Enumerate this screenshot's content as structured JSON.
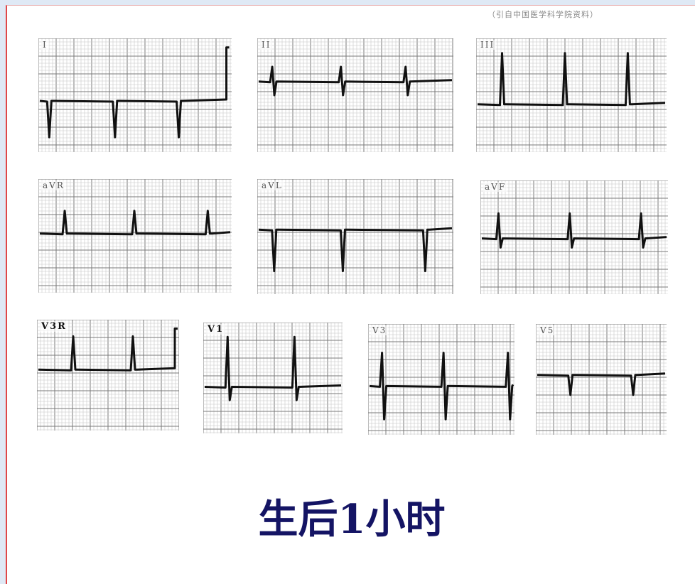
{
  "source_note": "（引自中国医学科学院资料）",
  "caption": "生后1小时",
  "leads": [
    {
      "label": "I",
      "bold": false
    },
    {
      "label": "II",
      "bold": false
    },
    {
      "label": "III",
      "bold": false
    },
    {
      "label": "aVR",
      "bold": false
    },
    {
      "label": "aVL",
      "bold": false
    },
    {
      "label": "aVF",
      "bold": false
    },
    {
      "label": "V3R",
      "bold": true
    },
    {
      "label": "V1",
      "bold": true
    },
    {
      "label": "V3",
      "bold": false
    },
    {
      "label": "V5",
      "bold": false
    }
  ],
  "colors": {
    "caption": "#141464",
    "trace": "#111111",
    "grid": "#9a9a9a",
    "frame": "#e04848"
  }
}
